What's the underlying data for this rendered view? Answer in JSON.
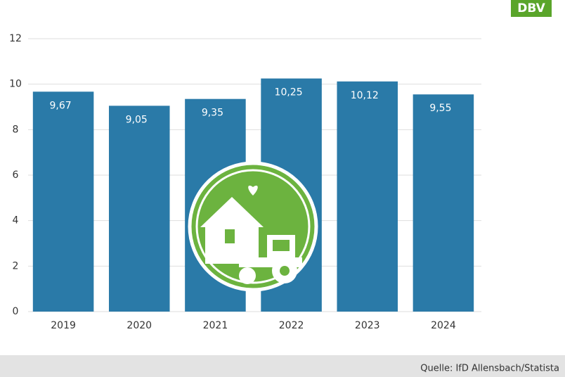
{
  "logo": "DBV",
  "source": "Quelle: IfD Allensbach/Statista",
  "chart_data": {
    "type": "bar",
    "categories": [
      "2019",
      "2020",
      "2021",
      "2022",
      "2023",
      "2024"
    ],
    "values": [
      9.67,
      9.05,
      9.35,
      10.25,
      10.12,
      9.55
    ],
    "value_labels": [
      "9,67",
      "9,05",
      "9,35",
      "10,25",
      "10,12",
      "9,55"
    ],
    "color": "#2a7aa8",
    "ylim": [
      0,
      12
    ],
    "yticks": [
      0,
      2,
      4,
      6,
      8,
      10,
      12
    ],
    "grid": true
  }
}
